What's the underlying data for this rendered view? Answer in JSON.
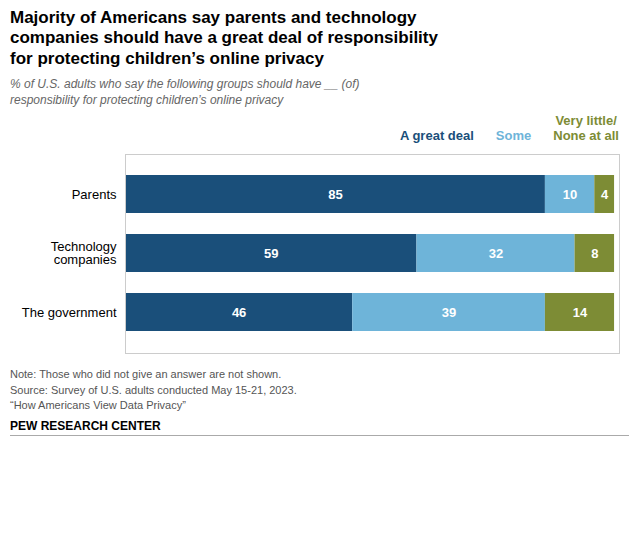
{
  "chart_data": {
    "type": "bar",
    "orientation": "horizontal",
    "stacked": true,
    "data_labels": true,
    "grid": false,
    "tick_labels": "y",
    "title": "Majority of Americans say parents and technology\ncompanies should have a great deal of responsibility\nfor protecting children’s online privacy",
    "subtitle": "% of U.S. adults who say the following groups should have __ (of)\nresponsibility for protecting children’s online privacy",
    "categories": [
      "Parents",
      "Technology\ncompanies",
      "The government"
    ],
    "series": [
      {
        "name": "A great deal",
        "color": "#1a4f7a",
        "values": [
          85,
          59,
          46
        ]
      },
      {
        "name": "Some",
        "color": "#6eb4d9",
        "values": [
          10,
          32,
          39
        ]
      },
      {
        "name": "Very little/\nNone at all",
        "color": "#7d8c35",
        "values": [
          4,
          8,
          14
        ]
      }
    ],
    "xlim": [
      0,
      100
    ],
    "annotations": [
      "Note: Those who did not give an answer are not shown.\nSource: Survey of U.S. adults conducted May 15-21, 2023.\n“How Americans View Data Privacy”",
      "PEW RESEARCH CENTER"
    ]
  }
}
